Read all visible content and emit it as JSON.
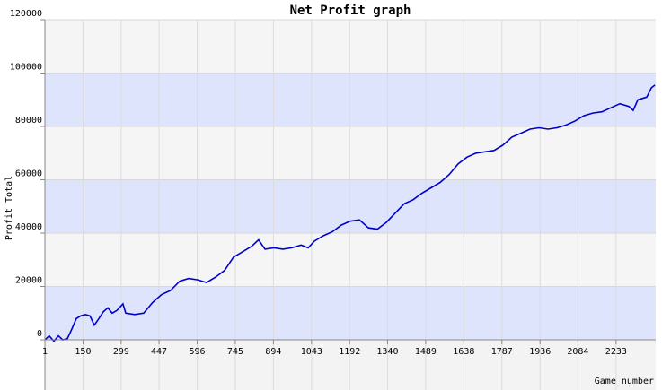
{
  "chart_data": {
    "type": "line",
    "title": "Net Profit graph",
    "x_label": "Game number",
    "y_label": "Profit Total",
    "x": [
      1,
      18,
      36,
      54,
      71,
      89,
      106,
      124,
      141,
      159,
      177,
      194,
      212,
      229,
      247,
      264,
      282,
      306,
      317,
      352,
      387,
      422,
      457,
      492,
      528,
      563,
      598,
      633,
      668,
      703,
      738,
      773,
      808,
      836,
      861,
      896,
      931,
      966,
      1002,
      1030,
      1054,
      1089,
      1124,
      1159,
      1194,
      1230,
      1265,
      1300,
      1335,
      1370,
      1405,
      1440,
      1475,
      1510,
      1546,
      1581,
      1616,
      1651,
      1686,
      1721,
      1756,
      1791,
      1826,
      1862,
      1897,
      1932,
      1967,
      2002,
      2037,
      2072,
      2107,
      2142,
      2178,
      2213,
      2248,
      2283,
      2300,
      2318,
      2353,
      2371,
      2385
    ],
    "series": [
      {
        "name": "Net Profit",
        "color": "#0000cc",
        "values": [
          0,
          1500,
          -500,
          1500,
          0,
          500,
          4000,
          8000,
          9000,
          9500,
          9000,
          5500,
          8000,
          10500,
          12000,
          10000,
          11000,
          13500,
          10000,
          9500,
          10000,
          14000,
          17000,
          18500,
          22000,
          23000,
          22500,
          21500,
          23500,
          26000,
          31000,
          33000,
          35000,
          37500,
          34000,
          34500,
          34000,
          34500,
          35500,
          34500,
          37000,
          39000,
          40500,
          43000,
          44500,
          45000,
          42000,
          41500,
          44000,
          47500,
          51000,
          52500,
          55000,
          57000,
          59000,
          62000,
          66000,
          68500,
          70000,
          70500,
          71000,
          73000,
          76000,
          77500,
          79000,
          79500,
          79000,
          79500,
          80500,
          82000,
          84000,
          85000,
          85500,
          87000,
          88500,
          87500,
          86000,
          90000,
          91000,
          94500,
          95500
        ]
      }
    ],
    "xlim": [
      1,
      2388
    ],
    "xticks": [
      1,
      150,
      299,
      447,
      596,
      745,
      894,
      1043,
      1192,
      1340,
      1489,
      1638,
      1787,
      1936,
      2084,
      2233
    ],
    "ylim": [
      -18800,
      120000
    ],
    "yticks": [
      0,
      20000,
      40000,
      60000,
      80000,
      100000,
      120000
    ],
    "grid": true,
    "band_colors": [
      "#dde4fc",
      "#f5f5f5"
    ]
  }
}
